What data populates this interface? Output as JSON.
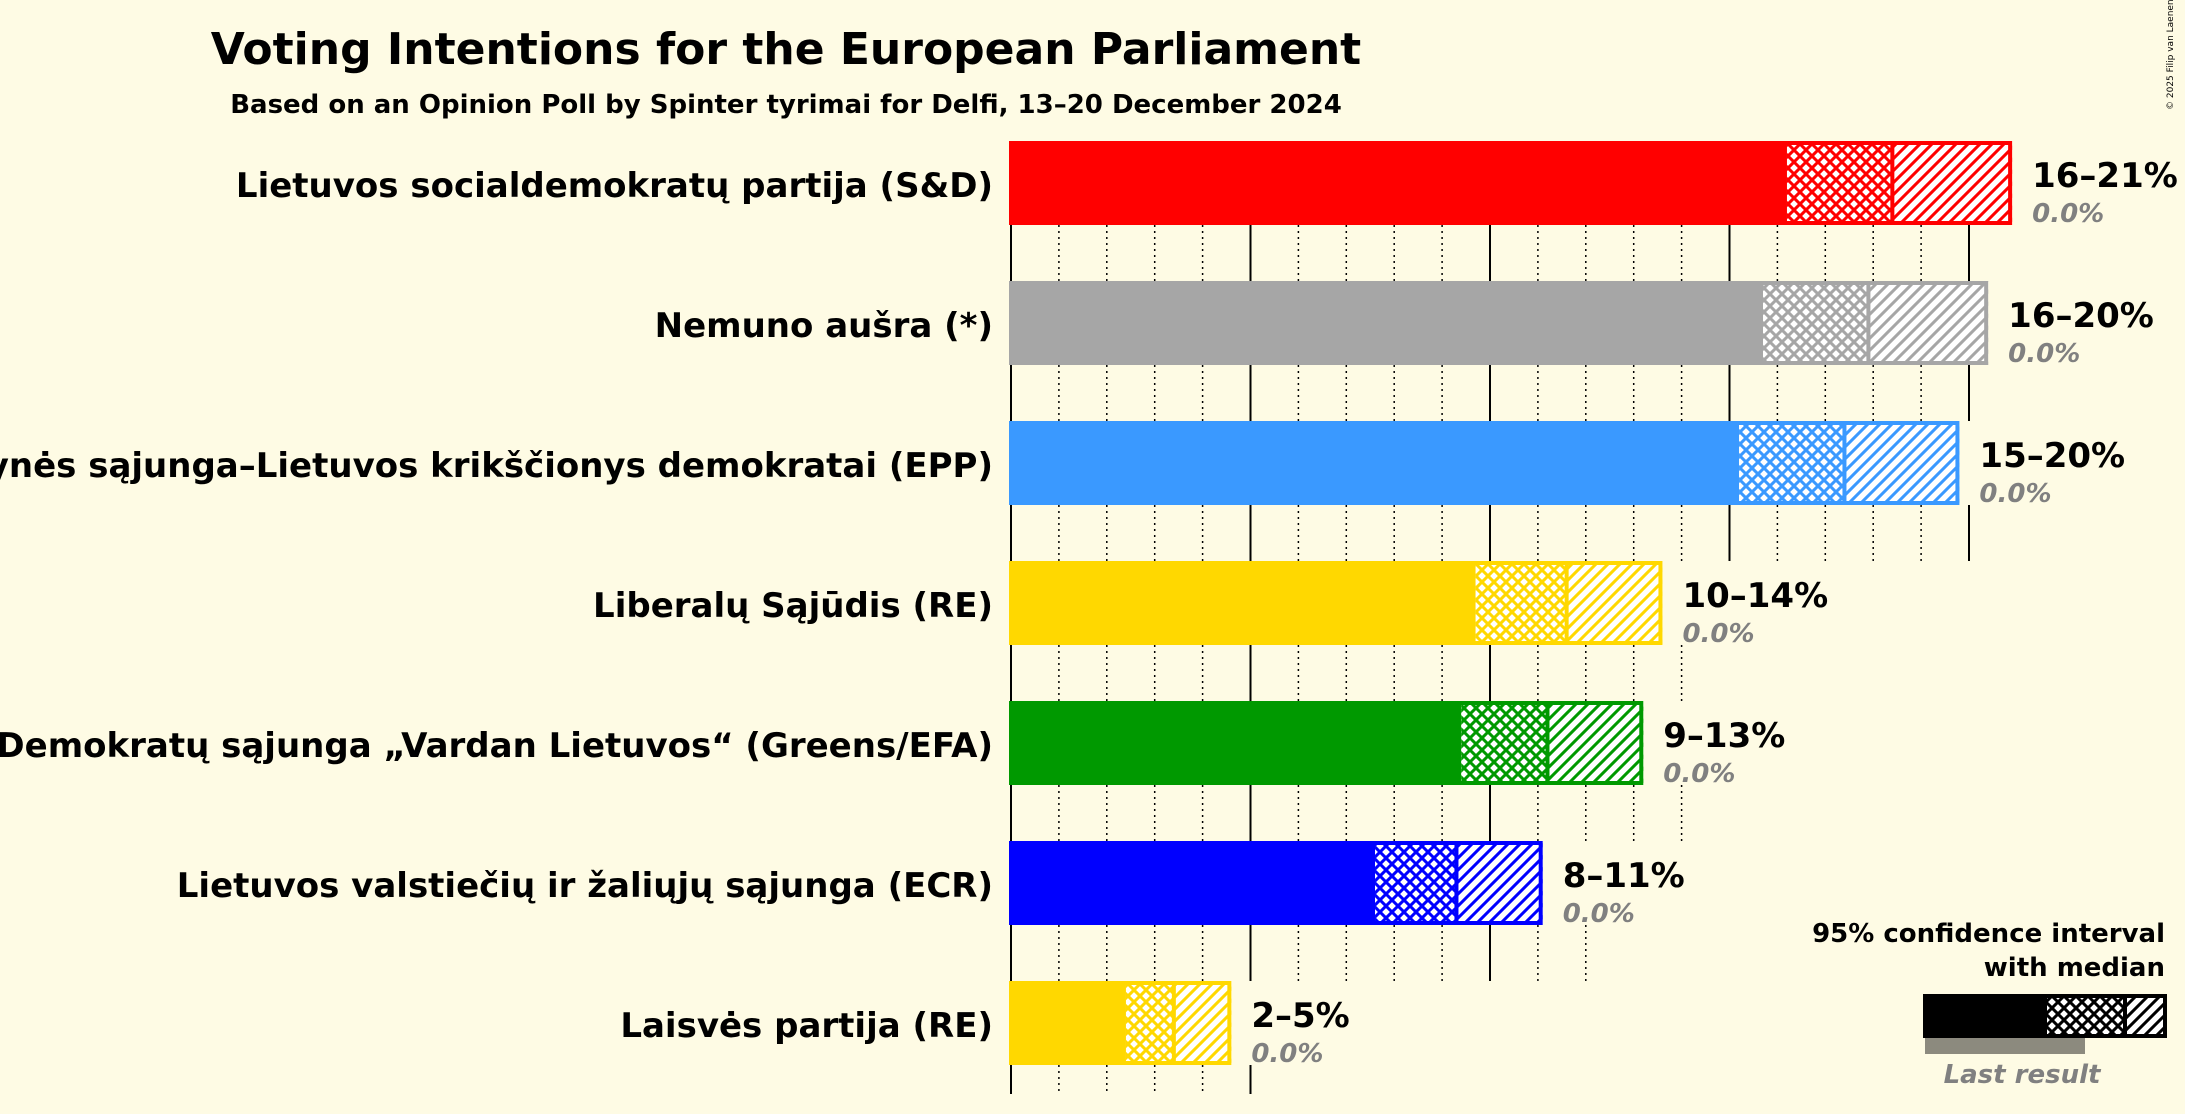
{
  "chart_data": {
    "type": "bar",
    "orientation": "horizontal",
    "title": "Voting Intentions for the European Parliament",
    "subtitle": "Based on an Opinion Poll by Spinter tyrimai for Delfi, 13–20 December 2024",
    "copyright": "© 2025 Filip van Laenen",
    "xlim": [
      0,
      21
    ],
    "grid": {
      "major_every": 5,
      "minor_every": 1,
      "style": "dotted minor, solid major"
    },
    "categories": [
      "Lietuvos socialdemokratų partija (S&D)",
      "Nemuno aušra (*)",
      "Tėvynės sąjunga–Lietuvos krikščionys demokratai (EPP)",
      "Liberalų Sąjūdis (RE)",
      "Demokratų sąjunga „Vardan Lietuvos“ (Greens/EFA)",
      "Lietuvos valstiečių ir žaliųjų sąjunga (ECR)",
      "Laisvės partija (RE)"
    ],
    "series": [
      {
        "name": "95% confidence interval",
        "low": [
          16.2,
          15.7,
          15.2,
          9.7,
          9.4,
          7.6,
          2.4
        ],
        "median": [
          18.4,
          17.9,
          17.4,
          11.6,
          11.2,
          9.3,
          3.4
        ],
        "high": [
          20.9,
          20.4,
          19.8,
          13.6,
          13.2,
          11.1,
          4.6
        ]
      },
      {
        "name": "Last result",
        "values": [
          0.0,
          0.0,
          0.0,
          0.0,
          0.0,
          0.0,
          0.0
        ]
      }
    ],
    "range_labels": [
      "16–21%",
      "16–20%",
      "15–20%",
      "10–14%",
      "9–13%",
      "8–11%",
      "2–5%"
    ],
    "last_labels": [
      "0.0%",
      "0.0%",
      "0.0%",
      "0.0%",
      "0.0%",
      "0.0%",
      "0.0%"
    ],
    "colors": [
      "#FF0000",
      "#A6A6A6",
      "#3A99FF",
      "#FFD800",
      "#009900",
      "#0000FF",
      "#FFD800"
    ],
    "legend": {
      "placement": "bottom-right",
      "line1": "95% confidence interval",
      "line2": "with median",
      "last_result": "Last result"
    }
  }
}
